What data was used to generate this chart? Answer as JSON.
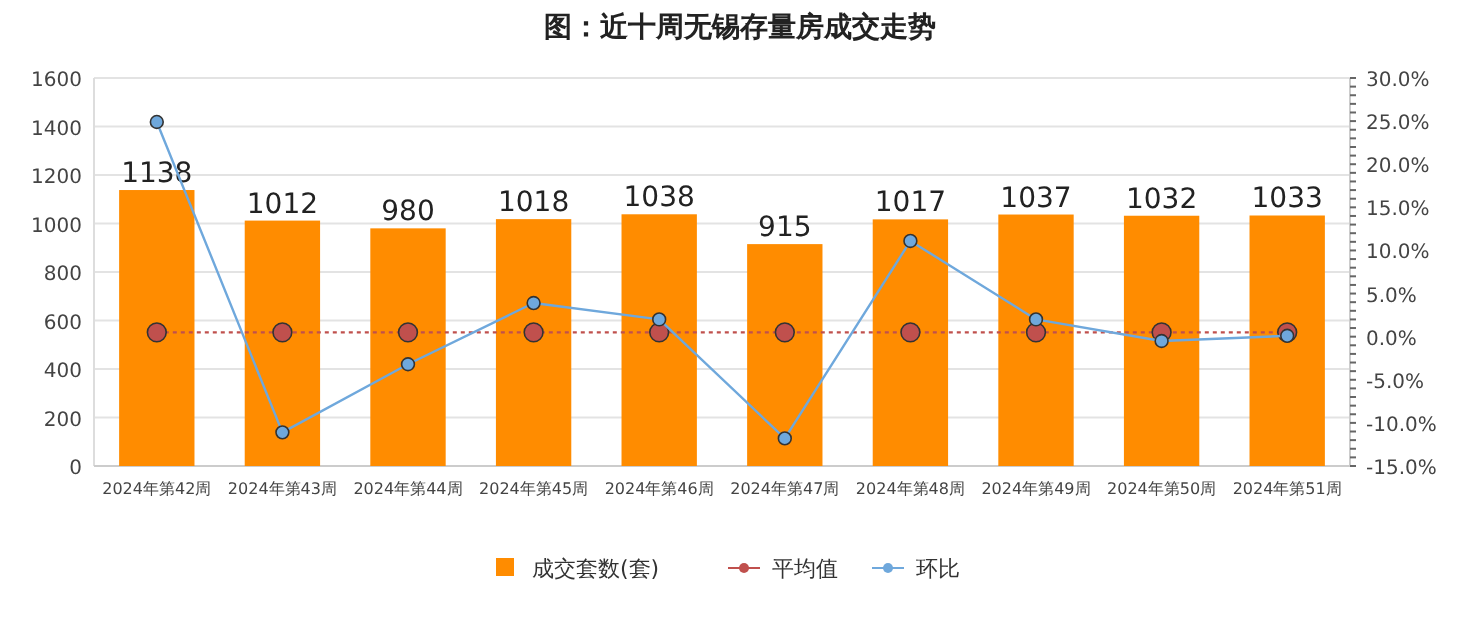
{
  "chart_data": {
    "type": "bar",
    "title": "图：近十周无锡存量房成交走势",
    "categories": [
      "2024年第42周",
      "2024年第43周",
      "2024年第44周",
      "2024年第45周",
      "2024年第46周",
      "2024年第47周",
      "2024年第48周",
      "2024年第49周",
      "2024年第50周",
      "2024年第51周"
    ],
    "series": [
      {
        "name": "成交套数(套)",
        "color": "#ff8c00",
        "values": [
          1138,
          1012,
          980,
          1018,
          1038,
          915,
          1017,
          1037,
          1032,
          1033
        ],
        "value_labels": [
          "1138",
          "1012",
          "980",
          "1018",
          "1038",
          "915",
          "1017",
          "1037",
          "1032",
          "1033"
        ]
      },
      {
        "name": "平均值",
        "type": "line",
        "axis": "y2",
        "color": "#c0504d",
        "line_style": "dotted",
        "values": [
          0.5,
          0.5,
          0.5,
          0.5,
          0.5,
          0.5,
          0.5,
          0.5,
          0.5,
          0.5
        ]
      },
      {
        "name": "环比",
        "type": "line",
        "axis": "y2",
        "color": "#6fa8dc",
        "line_style": "solid",
        "values": [
          24.9,
          -11.1,
          -3.2,
          3.9,
          2.0,
          -11.8,
          11.1,
          2.0,
          -0.5,
          0.1
        ]
      }
    ],
    "ylim": [
      0,
      1600
    ],
    "yticks": [
      0,
      200,
      400,
      600,
      800,
      1000,
      1200,
      1400,
      1600
    ],
    "y2lim": [
      -15,
      30
    ],
    "y2ticks": [
      {
        "value": -15,
        "label": "-15.0%"
      },
      {
        "value": -10,
        "label": "-10.0%"
      },
      {
        "value": -5,
        "label": "-5.0%"
      },
      {
        "value": 0,
        "label": "0.0%"
      },
      {
        "value": 5,
        "label": "5.0%"
      },
      {
        "value": 10,
        "label": "10.0%"
      },
      {
        "value": 15,
        "label": "15.0%"
      },
      {
        "value": 20,
        "label": "20.0%"
      },
      {
        "value": 25,
        "label": "25.0%"
      },
      {
        "value": 30,
        "label": "30.0%"
      }
    ],
    "grid": "y",
    "legend": "bottom",
    "marker": "circle"
  }
}
